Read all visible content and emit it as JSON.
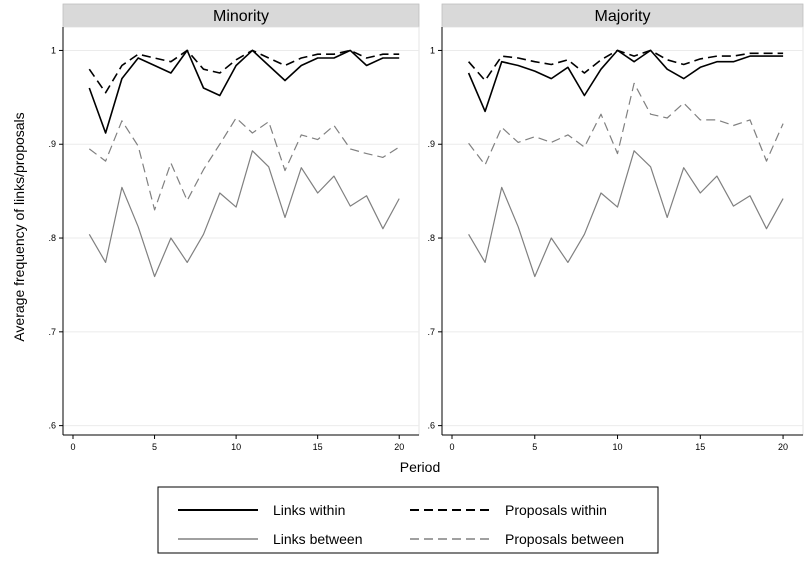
{
  "chart_data": {
    "type": "line",
    "ylabel": "Average frequency of links/proposals",
    "xlabel": "Period",
    "x_ticks": [
      0,
      5,
      10,
      15,
      20
    ],
    "y_ticks": [
      0.6,
      0.7,
      0.8,
      0.9,
      1.0
    ],
    "y_tick_labels": [
      ".6",
      ".7",
      ".8",
      ".9",
      "1"
    ],
    "x_ticks_labels": [
      "0",
      "5",
      "10",
      "15",
      "20"
    ],
    "xlim": [
      0,
      20.6
    ],
    "ylim": [
      0.59,
      1.025
    ],
    "grid": true,
    "legend_position": "bottom",
    "panels": [
      {
        "title": "Minority",
        "series": [
          {
            "name": "Links within",
            "style": "solid-black",
            "x": [
              1,
              2,
              3,
              4,
              5,
              6,
              7,
              8,
              9,
              10,
              11,
              12,
              13,
              14,
              15,
              16,
              17,
              18,
              19,
              20
            ],
            "values": [
              0.96,
              0.912,
              0.97,
              0.992,
              0.984,
              0.976,
              1.0,
              0.96,
              0.952,
              0.984,
              1.0,
              0.984,
              0.968,
              0.984,
              0.992,
              0.992,
              1.0,
              0.984,
              0.992,
              0.992
            ]
          },
          {
            "name": "Proposals within",
            "style": "dashed-black",
            "x": [
              1,
              2,
              3,
              4,
              5,
              6,
              7,
              8,
              9,
              10,
              11,
              12,
              13,
              14,
              15,
              16,
              17,
              18,
              19,
              20
            ],
            "values": [
              0.98,
              0.955,
              0.984,
              0.996,
              0.992,
              0.988,
              1.0,
              0.98,
              0.976,
              0.99,
              1.0,
              0.992,
              0.984,
              0.992,
              0.996,
              0.996,
              1.0,
              0.992,
              0.996,
              0.996
            ]
          },
          {
            "name": "Links between",
            "style": "solid-gray",
            "x": [
              1,
              2,
              3,
              4,
              5,
              6,
              7,
              8,
              9,
              10,
              11,
              12,
              13,
              14,
              15,
              16,
              17,
              18,
              19,
              20
            ],
            "values": [
              0.804,
              0.774,
              0.854,
              0.812,
              0.759,
              0.8,
              0.774,
              0.804,
              0.848,
              0.833,
              0.893,
              0.876,
              0.822,
              0.875,
              0.848,
              0.866,
              0.834,
              0.845,
              0.81,
              0.842
            ]
          },
          {
            "name": "Proposals between",
            "style": "dashed-gray",
            "x": [
              1,
              2,
              3,
              4,
              5,
              6,
              7,
              8,
              9,
              10,
              11,
              12,
              13,
              14,
              15,
              16,
              17,
              18,
              19,
              20
            ],
            "values": [
              0.895,
              0.882,
              0.925,
              0.898,
              0.83,
              0.88,
              0.84,
              0.873,
              0.9,
              0.928,
              0.912,
              0.924,
              0.872,
              0.91,
              0.905,
              0.92,
              0.895,
              0.89,
              0.886,
              0.897
            ]
          }
        ]
      },
      {
        "title": "Majority",
        "series": [
          {
            "name": "Links within",
            "style": "solid-black",
            "x": [
              1,
              2,
              3,
              4,
              5,
              6,
              7,
              8,
              9,
              10,
              11,
              12,
              13,
              14,
              15,
              16,
              17,
              18,
              19,
              20
            ],
            "values": [
              0.976,
              0.935,
              0.988,
              0.984,
              0.978,
              0.97,
              0.982,
              0.952,
              0.98,
              1.0,
              0.988,
              1.0,
              0.98,
              0.97,
              0.982,
              0.988,
              0.988,
              0.994,
              0.994,
              0.994
            ]
          },
          {
            "name": "Proposals within",
            "style": "dashed-black",
            "x": [
              1,
              2,
              3,
              4,
              5,
              6,
              7,
              8,
              9,
              10,
              11,
              12,
              13,
              14,
              15,
              16,
              17,
              18,
              19,
              20
            ],
            "values": [
              0.988,
              0.968,
              0.994,
              0.992,
              0.988,
              0.985,
              0.99,
              0.976,
              0.99,
              1.0,
              0.994,
              1.0,
              0.99,
              0.985,
              0.991,
              0.994,
              0.994,
              0.997,
              0.997,
              0.997
            ]
          },
          {
            "name": "Links between",
            "style": "solid-gray",
            "x": [
              1,
              2,
              3,
              4,
              5,
              6,
              7,
              8,
              9,
              10,
              11,
              12,
              13,
              14,
              15,
              16,
              17,
              18,
              19,
              20
            ],
            "values": [
              0.804,
              0.774,
              0.854,
              0.812,
              0.759,
              0.8,
              0.774,
              0.804,
              0.848,
              0.833,
              0.893,
              0.876,
              0.822,
              0.875,
              0.848,
              0.866,
              0.834,
              0.845,
              0.81,
              0.842
            ]
          },
          {
            "name": "Proposals between",
            "style": "dashed-gray",
            "x": [
              1,
              2,
              3,
              4,
              5,
              6,
              7,
              8,
              9,
              10,
              11,
              12,
              13,
              14,
              15,
              16,
              17,
              18,
              19,
              20
            ],
            "values": [
              0.901,
              0.878,
              0.918,
              0.902,
              0.908,
              0.902,
              0.91,
              0.897,
              0.932,
              0.89,
              0.965,
              0.932,
              0.928,
              0.944,
              0.926,
              0.926,
              0.92,
              0.926,
              0.882,
              0.922
            ]
          }
        ]
      }
    ]
  },
  "legend": {
    "items": [
      {
        "label": "Links within",
        "style": "solid-black"
      },
      {
        "label": "Proposals within",
        "style": "dashed-black"
      },
      {
        "label": "Links between",
        "style": "solid-gray"
      },
      {
        "label": "Proposals between",
        "style": "dashed-gray"
      }
    ]
  },
  "colors": {
    "black": "#000000",
    "gray": "#808080",
    "panel_header": "#d9d9d9",
    "grid": "#ebebeb",
    "axis": "#000000"
  }
}
